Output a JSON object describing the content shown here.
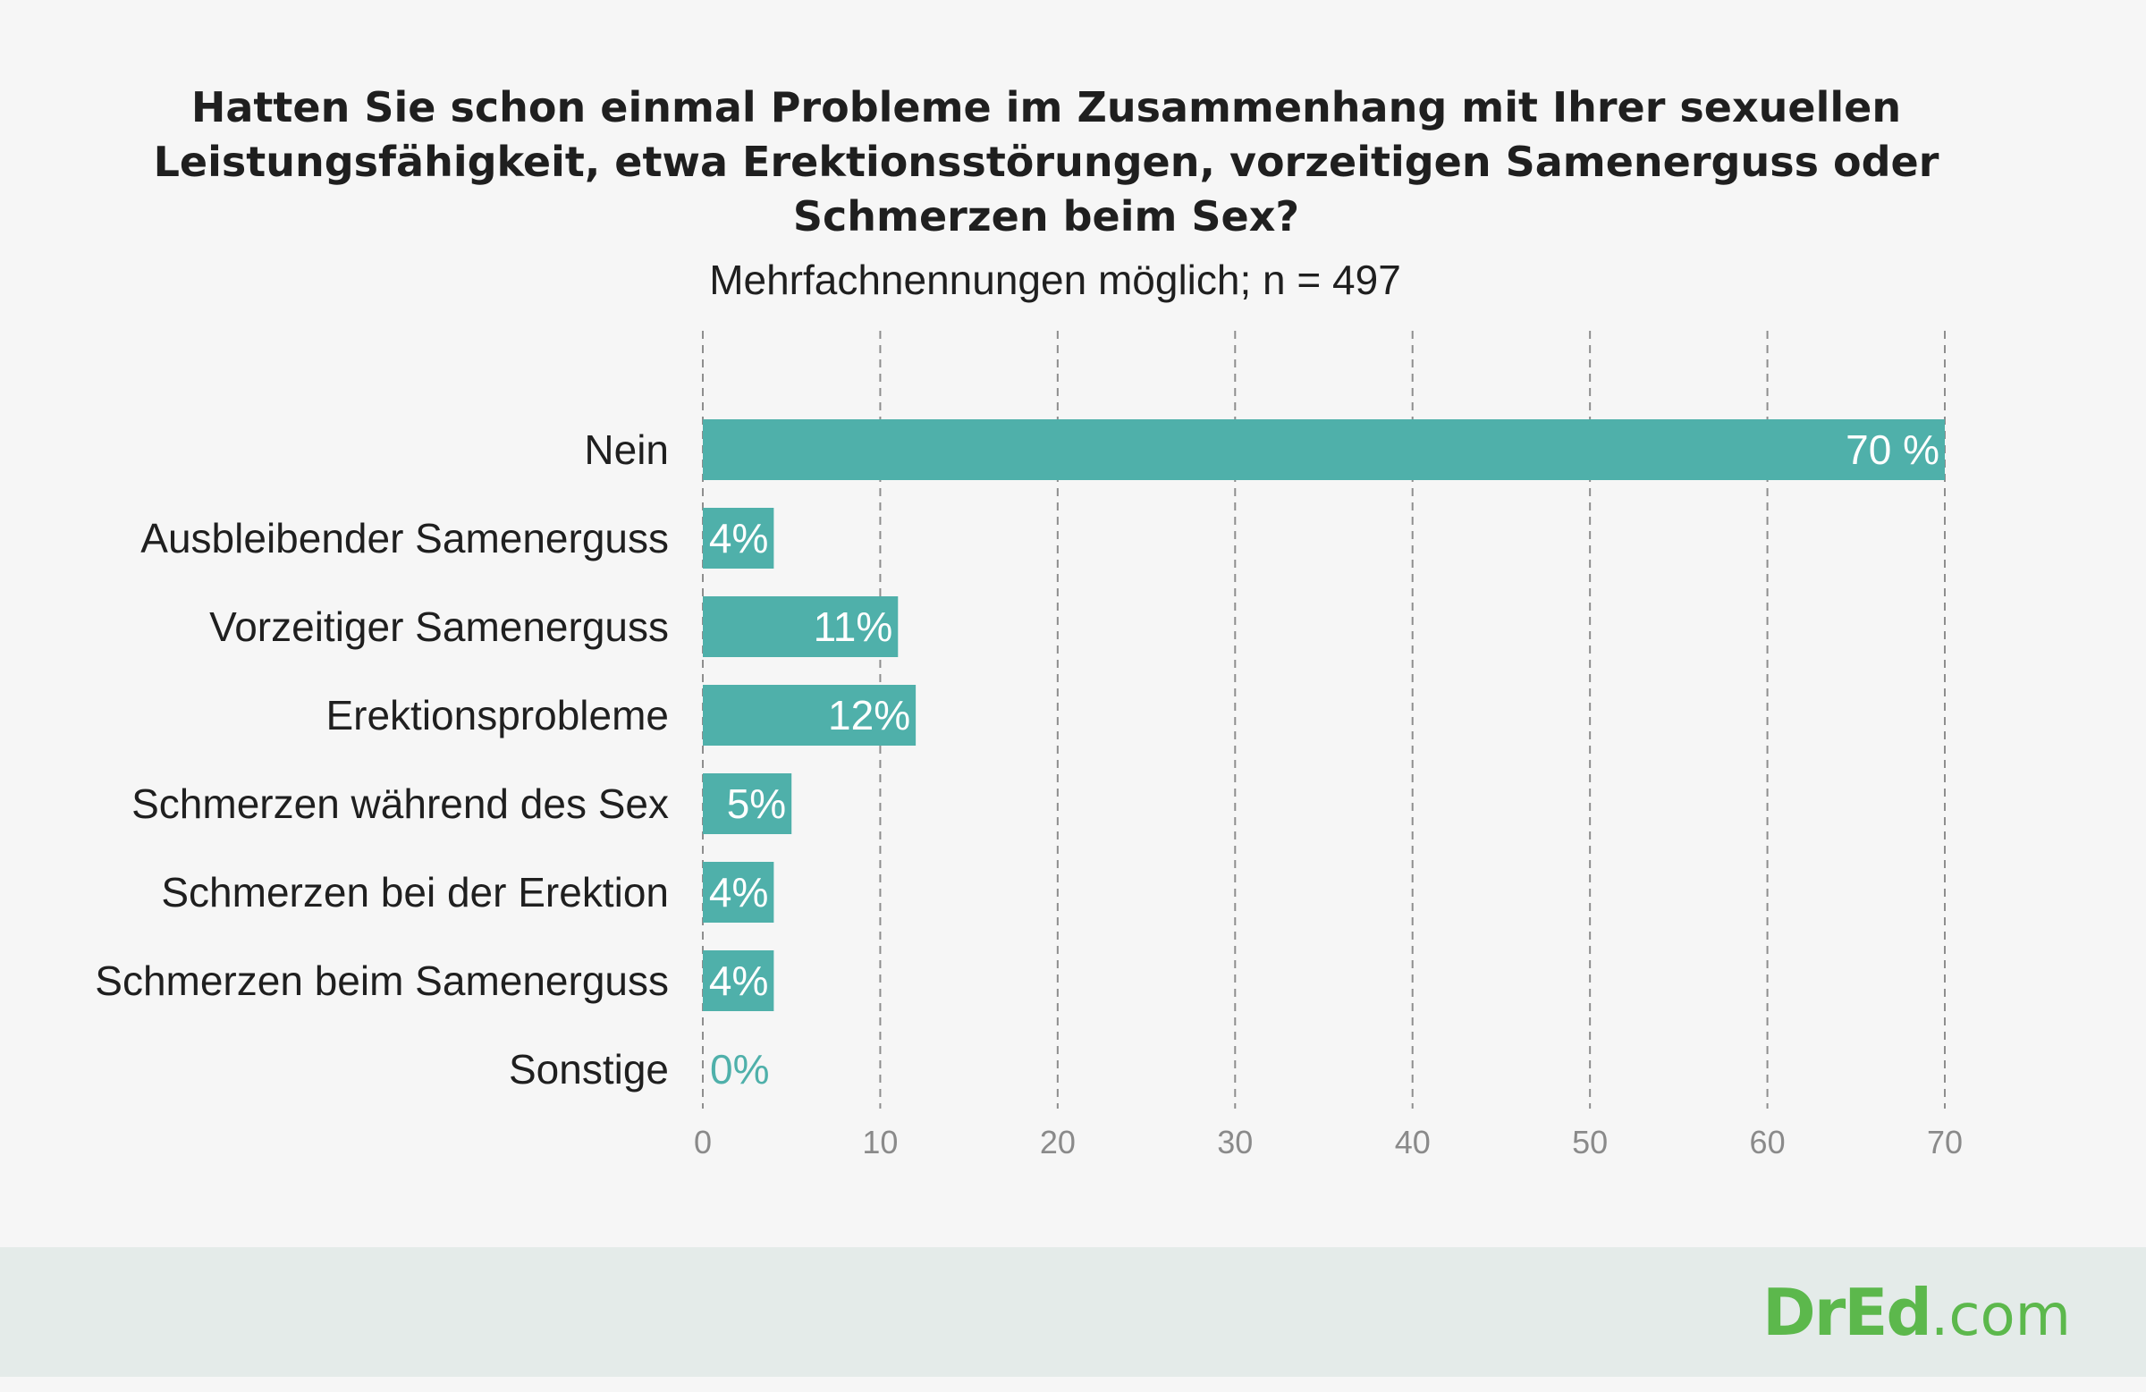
{
  "chart_data": {
    "type": "bar",
    "orientation": "horizontal",
    "title": [
      "Hatten Sie schon einmal Probleme im Zusammenhang mit Ihrer sexuellen",
      "Leistungsfähigkeit, etwa Erektionsstörungen, vorzeitigen Samenerguss oder",
      "Schmerzen beim Sex?"
    ],
    "subtitle": "Mehrfachnennungen möglich; n = 497",
    "categories": [
      "Nein",
      "Ausbleibender Samenerguss",
      "Vorzeitiger Samenerguss",
      "Erektionsprobleme",
      "Schmerzen während des Sex",
      "Schmerzen bei der Erektion",
      "Schmerzen beim Samenerguss",
      "Sonstige"
    ],
    "values": [
      70,
      4,
      11,
      12,
      5,
      4,
      4,
      0
    ],
    "data_labels": [
      "70 %",
      "4%",
      "11%",
      "12%",
      "5%",
      "4%",
      "4%",
      "0%"
    ],
    "xlim": [
      0,
      70
    ],
    "xticks": [
      "0",
      "10",
      "20",
      "30",
      "40",
      "50",
      "60",
      "70"
    ],
    "grid": true,
    "xlabel": "",
    "ylabel": ""
  },
  "colors": {
    "bar": "#4fb0aa",
    "bar_label": "#ffffff",
    "zero_label": "#4fb0aa",
    "category_label": "#1f1f1f",
    "tick_label": "#8a8a8a",
    "grid": "#8e8e8e",
    "footer": "#e4ebe9",
    "logo": "#5cb84c"
  },
  "logo": {
    "brand": "DrEd",
    "suffix": ".com"
  }
}
